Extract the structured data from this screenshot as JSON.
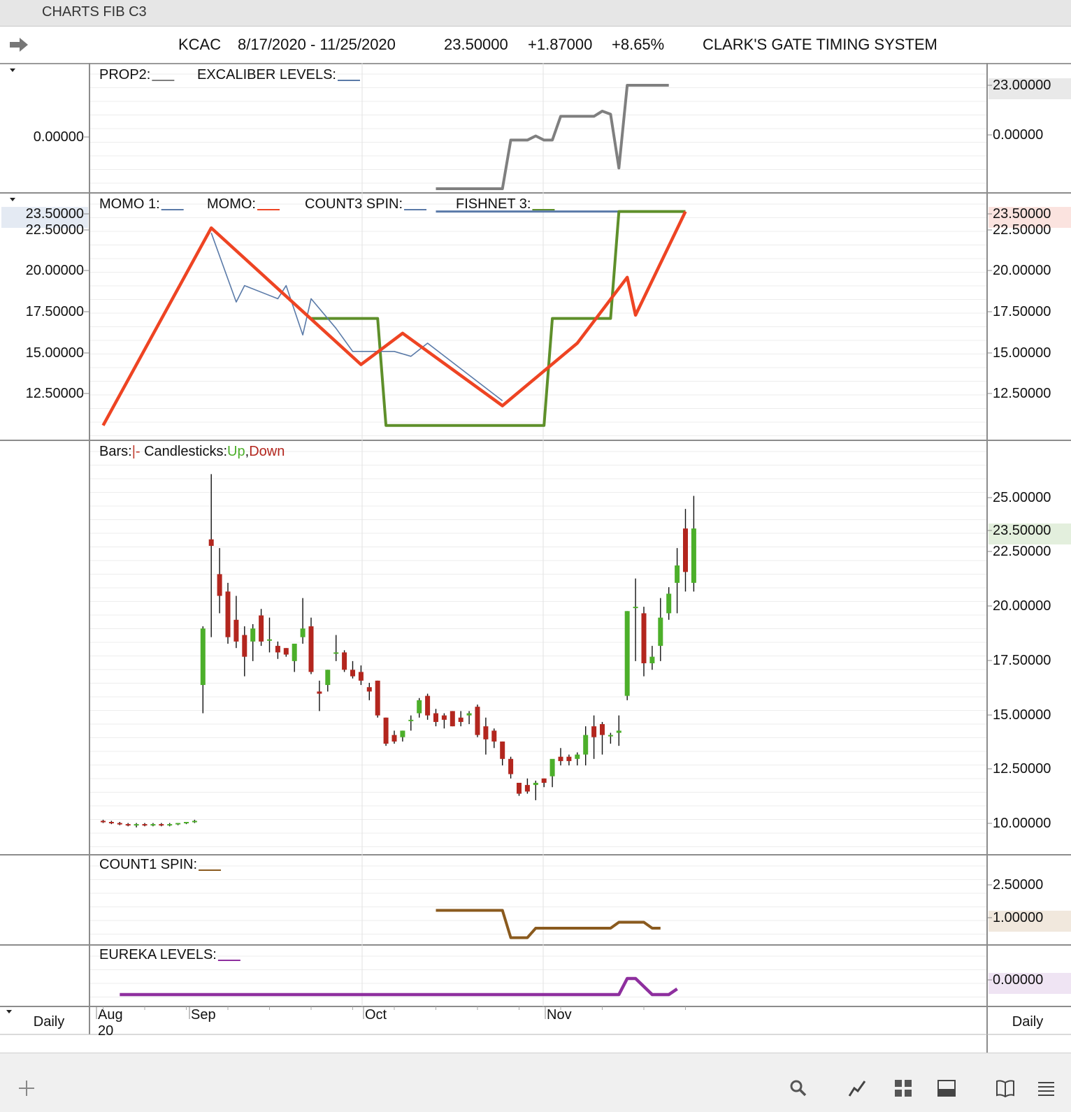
{
  "window_title": "CHARTS FIB C3",
  "header": {
    "symbol": "KCAC",
    "date_range": "8/17/2020 - 11/25/2020",
    "last": "23.50000",
    "change": "+1.87000",
    "change_pct": "+8.65%",
    "system": "CLARK'S GATE TIMING SYSTEM"
  },
  "panels": {
    "prop": {
      "legend": [
        "PROP2:",
        "EXCALIBER LEVELS:"
      ],
      "left_labels": [
        "0.00000"
      ],
      "right_labels": [
        "23.00000",
        "0.00000"
      ]
    },
    "momo": {
      "legend": [
        "MOMO 1:",
        "MOMO:",
        "COUNT3 SPIN:",
        "FISHNET 3:"
      ],
      "left_labels": [
        "23.50000",
        "22.50000",
        "20.00000",
        "17.50000",
        "15.00000",
        "12.50000"
      ],
      "right_labels": [
        "23.50000",
        "22.50000",
        "20.00000",
        "17.50000",
        "15.00000",
        "12.50000"
      ]
    },
    "price": {
      "legend_bars": "Bars:",
      "legend_bars_mark": "|-",
      "legend_candles": "Candlesticks:",
      "legend_up": "Up",
      "legend_sep": ",",
      "legend_down": "Down",
      "right_labels": [
        "25.00000",
        "23.50000",
        "22.50000",
        "20.00000",
        "17.50000",
        "15.00000",
        "12.50000",
        "10.00000"
      ]
    },
    "count1": {
      "legend": [
        "COUNT1 SPIN:"
      ],
      "right_labels": [
        "2.50000",
        "1.00000"
      ]
    },
    "eureka": {
      "legend": [
        "EUREKA LEVELS:"
      ],
      "right_labels": [
        "0.00000"
      ]
    }
  },
  "time_axis": {
    "months": [
      "Aug",
      "Sep",
      "Oct",
      "Nov"
    ],
    "year": "20",
    "interval_left": "Daily",
    "interval_right": "Daily"
  },
  "colors": {
    "up": "#4caf2a",
    "down": "#b3261e",
    "momo": "#ee4423",
    "momo1": "#5a7aa8",
    "fishnet": "#5e8f2a",
    "count1": "#8a5a1e",
    "eureka": "#8e2f9e",
    "excaliber": "#7f7f7f"
  },
  "toolbar_icons": [
    "plus-icon",
    "search-icon",
    "line-chart-icon",
    "grid-icon",
    "panel-icon",
    "book-icon",
    "menu-icon"
  ],
  "chart_data": {
    "type": "candlestick",
    "symbol": "KCAC",
    "x_range": [
      "2020-08-17",
      "2020-11-25"
    ],
    "candles": [
      {
        "o": 10.05,
        "h": 10.1,
        "l": 9.95,
        "c": 10.0
      },
      {
        "o": 10.0,
        "h": 10.05,
        "l": 9.9,
        "c": 9.95
      },
      {
        "o": 9.95,
        "h": 10.0,
        "l": 9.85,
        "c": 9.9
      },
      {
        "o": 9.9,
        "h": 9.95,
        "l": 9.8,
        "c": 9.85
      },
      {
        "o": 9.85,
        "h": 9.95,
        "l": 9.75,
        "c": 9.9
      },
      {
        "o": 9.9,
        "h": 9.95,
        "l": 9.8,
        "c": 9.85
      },
      {
        "o": 9.85,
        "h": 9.95,
        "l": 9.8,
        "c": 9.9
      },
      {
        "o": 9.9,
        "h": 9.95,
        "l": 9.8,
        "c": 9.85
      },
      {
        "o": 9.85,
        "h": 9.95,
        "l": 9.8,
        "c": 9.9
      },
      {
        "o": 9.9,
        "h": 9.95,
        "l": 9.85,
        "c": 9.95
      },
      {
        "o": 9.95,
        "h": 10.0,
        "l": 9.9,
        "c": 10.0
      },
      {
        "o": 10.0,
        "h": 10.1,
        "l": 9.95,
        "c": 10.05
      },
      {
        "o": 16.3,
        "h": 19.0,
        "l": 15.0,
        "c": 18.9
      },
      {
        "o": 23.0,
        "h": 26.0,
        "l": 18.5,
        "c": 22.7
      },
      {
        "o": 21.4,
        "h": 22.6,
        "l": 19.6,
        "c": 20.4
      },
      {
        "o": 20.6,
        "h": 21.0,
        "l": 18.2,
        "c": 18.5
      },
      {
        "o": 19.3,
        "h": 20.4,
        "l": 18.0,
        "c": 18.3
      },
      {
        "o": 18.6,
        "h": 19.0,
        "l": 16.7,
        "c": 17.6
      },
      {
        "o": 18.3,
        "h": 19.1,
        "l": 17.4,
        "c": 18.9
      },
      {
        "o": 19.5,
        "h": 19.8,
        "l": 18.1,
        "c": 18.3
      },
      {
        "o": 18.4,
        "h": 19.4,
        "l": 17.8,
        "c": 18.4
      },
      {
        "o": 18.1,
        "h": 18.3,
        "l": 17.5,
        "c": 17.8
      },
      {
        "o": 18.0,
        "h": 18.0,
        "l": 17.6,
        "c": 17.7
      },
      {
        "o": 17.4,
        "h": 18.1,
        "l": 16.9,
        "c": 18.2
      },
      {
        "o": 18.5,
        "h": 20.3,
        "l": 18.2,
        "c": 18.9
      },
      {
        "o": 19.0,
        "h": 19.4,
        "l": 16.8,
        "c": 16.9
      },
      {
        "o": 16.0,
        "h": 16.5,
        "l": 15.1,
        "c": 15.9
      },
      {
        "o": 16.3,
        "h": 17.0,
        "l": 16.0,
        "c": 17.0
      },
      {
        "o": 17.8,
        "h": 18.6,
        "l": 17.4,
        "c": 17.8
      },
      {
        "o": 17.8,
        "h": 17.9,
        "l": 16.9,
        "c": 17.0
      },
      {
        "o": 17.0,
        "h": 17.4,
        "l": 16.6,
        "c": 16.7
      },
      {
        "o": 16.9,
        "h": 17.2,
        "l": 16.3,
        "c": 16.5
      },
      {
        "o": 16.2,
        "h": 16.4,
        "l": 15.6,
        "c": 16.0
      },
      {
        "o": 16.5,
        "h": 16.5,
        "l": 14.8,
        "c": 14.9
      },
      {
        "o": 14.8,
        "h": 14.8,
        "l": 13.5,
        "c": 13.6
      },
      {
        "o": 14.0,
        "h": 14.2,
        "l": 13.6,
        "c": 13.7
      },
      {
        "o": 13.9,
        "h": 14.2,
        "l": 13.7,
        "c": 14.2
      },
      {
        "o": 14.7,
        "h": 14.9,
        "l": 14.2,
        "c": 14.7
      },
      {
        "o": 15.0,
        "h": 15.7,
        "l": 14.8,
        "c": 15.6
      },
      {
        "o": 15.8,
        "h": 15.9,
        "l": 14.7,
        "c": 14.9
      },
      {
        "o": 15.0,
        "h": 15.2,
        "l": 14.4,
        "c": 14.6
      },
      {
        "o": 14.9,
        "h": 15.0,
        "l": 14.3,
        "c": 14.7
      },
      {
        "o": 15.1,
        "h": 15.1,
        "l": 14.4,
        "c": 14.4
      },
      {
        "o": 14.8,
        "h": 15.1,
        "l": 14.4,
        "c": 14.6
      },
      {
        "o": 14.9,
        "h": 15.1,
        "l": 14.5,
        "c": 15.0
      },
      {
        "o": 15.3,
        "h": 15.4,
        "l": 13.9,
        "c": 14.0
      },
      {
        "o": 14.4,
        "h": 14.8,
        "l": 13.1,
        "c": 13.8
      },
      {
        "o": 14.2,
        "h": 14.3,
        "l": 13.4,
        "c": 13.7
      },
      {
        "o": 13.7,
        "h": 13.7,
        "l": 12.6,
        "c": 12.9
      },
      {
        "o": 12.9,
        "h": 13.0,
        "l": 12.0,
        "c": 12.2
      },
      {
        "o": 11.8,
        "h": 11.8,
        "l": 11.2,
        "c": 11.3
      },
      {
        "o": 11.7,
        "h": 12.0,
        "l": 11.3,
        "c": 11.4
      },
      {
        "o": 11.7,
        "h": 11.9,
        "l": 11.0,
        "c": 11.8
      },
      {
        "o": 12.0,
        "h": 12.0,
        "l": 11.6,
        "c": 11.8
      },
      {
        "o": 12.1,
        "h": 12.8,
        "l": 11.6,
        "c": 12.9
      },
      {
        "o": 13.0,
        "h": 13.4,
        "l": 12.6,
        "c": 12.8
      },
      {
        "o": 13.0,
        "h": 13.1,
        "l": 12.6,
        "c": 12.8
      },
      {
        "o": 12.9,
        "h": 13.2,
        "l": 12.6,
        "c": 13.1
      },
      {
        "o": 13.1,
        "h": 14.4,
        "l": 12.6,
        "c": 14.0
      },
      {
        "o": 14.4,
        "h": 14.9,
        "l": 12.9,
        "c": 13.9
      },
      {
        "o": 14.5,
        "h": 14.6,
        "l": 13.1,
        "c": 14.0
      },
      {
        "o": 14.0,
        "h": 14.1,
        "l": 13.6,
        "c": 14.0
      },
      {
        "o": 14.1,
        "h": 14.9,
        "l": 13.5,
        "c": 14.2
      },
      {
        "o": 15.8,
        "h": 19.7,
        "l": 15.6,
        "c": 19.7
      },
      {
        "o": 19.9,
        "h": 21.2,
        "l": 17.4,
        "c": 19.9
      },
      {
        "o": 19.6,
        "h": 19.9,
        "l": 16.7,
        "c": 17.3
      },
      {
        "o": 17.3,
        "h": 18.1,
        "l": 17.0,
        "c": 17.6
      },
      {
        "o": 18.1,
        "h": 20.3,
        "l": 17.4,
        "c": 19.4
      },
      {
        "o": 19.6,
        "h": 20.8,
        "l": 19.3,
        "c": 20.5
      },
      {
        "o": 21.0,
        "h": 22.6,
        "l": 19.6,
        "c": 21.8
      },
      {
        "o": 23.5,
        "h": 24.4,
        "l": 20.6,
        "c": 21.5
      },
      {
        "o": 21.0,
        "h": 25.0,
        "l": 20.6,
        "c": 23.5
      }
    ],
    "indicators": {
      "momo": [
        [
          0,
          10.5
        ],
        [
          13,
          22.5
        ],
        [
          31,
          14.2
        ],
        [
          36,
          16.1
        ],
        [
          48,
          11.7
        ],
        [
          57,
          15.5
        ],
        [
          63,
          19.5
        ],
        [
          64,
          17.2
        ],
        [
          70,
          23.5
        ]
      ],
      "momo1": [
        [
          13,
          22.2
        ],
        [
          16,
          18.0
        ],
        [
          17,
          19.0
        ],
        [
          21,
          18.2
        ],
        [
          22,
          19.0
        ],
        [
          24,
          16.0
        ],
        [
          25,
          18.2
        ],
        [
          28,
          16.4
        ],
        [
          30,
          15.0
        ],
        [
          35,
          15.0
        ],
        [
          37,
          14.7
        ],
        [
          39,
          15.5
        ],
        [
          48,
          12.0
        ]
      ],
      "fishnet3": [
        [
          25,
          17.0
        ],
        [
          33,
          17.0
        ],
        [
          34,
          10.5
        ],
        [
          53,
          10.5
        ],
        [
          54,
          17.0
        ],
        [
          61,
          17.0
        ],
        [
          62,
          23.5
        ],
        [
          70,
          23.5
        ]
      ],
      "count3_spin": [
        [
          40,
          23.5
        ],
        [
          68,
          23.5
        ]
      ],
      "excaliber": [
        [
          40,
          0.0
        ],
        [
          48,
          0.0
        ],
        [
          49,
          0.47
        ],
        [
          51,
          0.47
        ],
        [
          52,
          0.51
        ],
        [
          53,
          0.47
        ],
        [
          54,
          0.47
        ],
        [
          55,
          0.7
        ],
        [
          59,
          0.7
        ],
        [
          60,
          0.75
        ],
        [
          61,
          0.72
        ],
        [
          62,
          0.2
        ],
        [
          63,
          1.0
        ],
        [
          68,
          1.0
        ]
      ],
      "count1_spin": [
        [
          40,
          2.5
        ],
        [
          48,
          2.5
        ],
        [
          49,
          0.2
        ],
        [
          51,
          0.2
        ],
        [
          52,
          1.0
        ],
        [
          61,
          1.0
        ],
        [
          62,
          1.5
        ],
        [
          65,
          1.5
        ],
        [
          66,
          1.0
        ],
        [
          67,
          1.0
        ]
      ],
      "eureka": [
        [
          2,
          0.0
        ],
        [
          62,
          0.0
        ],
        [
          63,
          0.85
        ],
        [
          64,
          0.85
        ],
        [
          66,
          0.0
        ],
        [
          68,
          0.0
        ],
        [
          69,
          0.3
        ]
      ]
    }
  }
}
